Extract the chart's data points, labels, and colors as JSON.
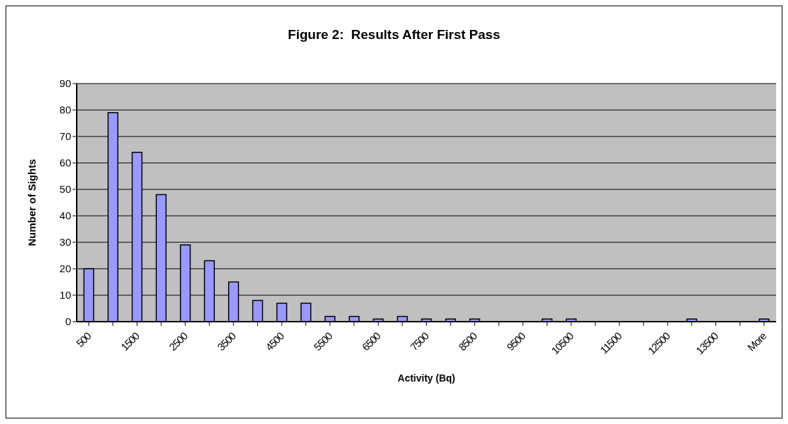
{
  "chart_data": {
    "type": "bar",
    "title": "Figure 2:  Results After First Pass",
    "xlabel": "Activity (Bq)",
    "ylabel": "Number of Sights",
    "categories": [
      "500",
      null,
      "1500",
      null,
      "2500",
      null,
      "3500",
      null,
      "4500",
      null,
      "5500",
      null,
      "6500",
      null,
      "7500",
      null,
      "8500",
      null,
      "9500",
      null,
      "10500",
      null,
      "11500",
      null,
      "12500",
      null,
      "13500",
      null,
      "More"
    ],
    "values": [
      20,
      79,
      64,
      48,
      29,
      23,
      15,
      8,
      7,
      7,
      2,
      2,
      1,
      2,
      1,
      1,
      1,
      0,
      0,
      1,
      1,
      0,
      0,
      0,
      0,
      1,
      0,
      0,
      1
    ],
    "color": "#9999ff",
    "ylim": [
      0,
      90
    ],
    "yticks": [
      0,
      10,
      20,
      30,
      40,
      50,
      60,
      70,
      80,
      90
    ],
    "grid": "y"
  }
}
